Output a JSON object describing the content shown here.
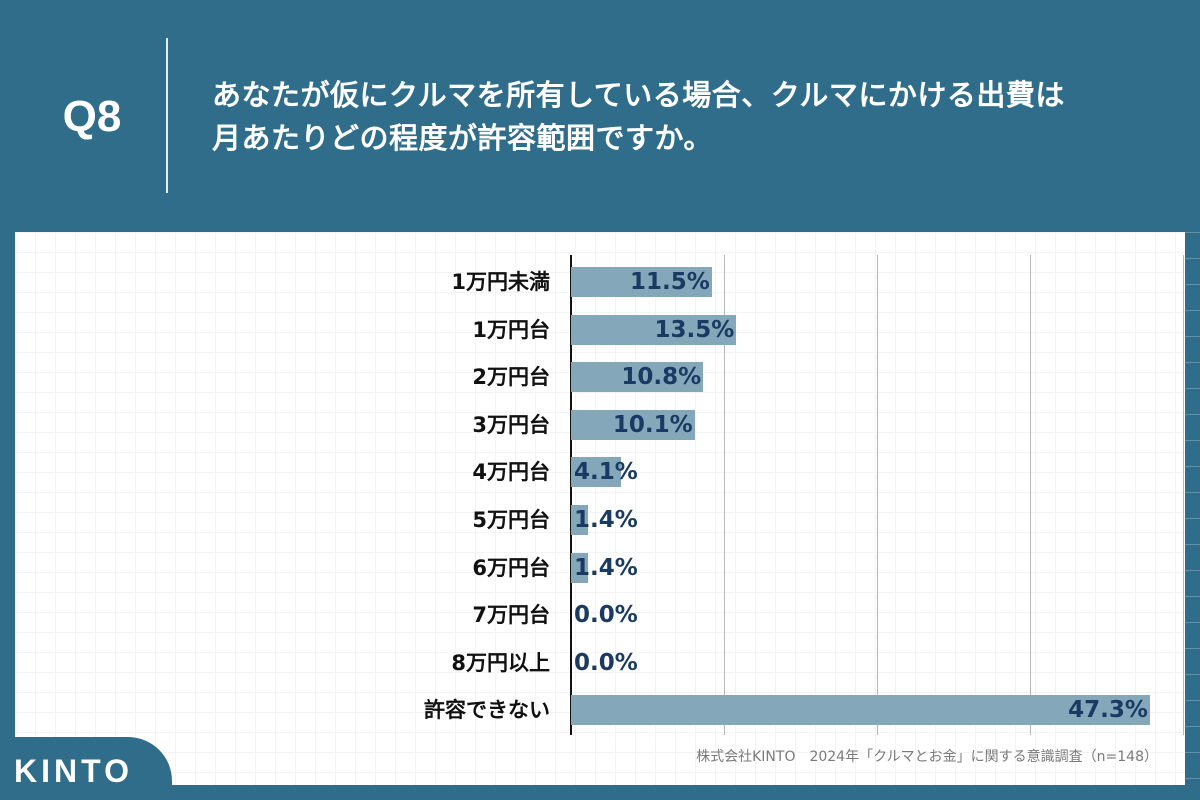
{
  "header": {
    "question_number": "Q8",
    "title_lines": [
      "あなたが仮にクルマを所有している場合、クルマにかける出費は",
      "月あたりどの程度が許容範囲ですか。"
    ]
  },
  "colors": {
    "background": "#2f6d8a",
    "bar": "#84a8ba",
    "value_text": "#1b3a63",
    "label_text": "#111111",
    "source_text": "#7a7a7a"
  },
  "chart_data": {
    "type": "bar",
    "orientation": "horizontal",
    "title": "あなたが仮にクルマを所有している場合、クルマにかける出費は月あたりどの程度が許容範囲ですか。",
    "categories": [
      "1万円未満",
      "1万円台",
      "2万円台",
      "3万円台",
      "4万円台",
      "5万円台",
      "6万円台",
      "7万円台",
      "8万円以上",
      "許容できない"
    ],
    "values": [
      11.5,
      13.5,
      10.8,
      10.1,
      4.1,
      1.4,
      1.4,
      0.0,
      0.0,
      47.3
    ],
    "value_labels": [
      "11.5%",
      "13.5%",
      "10.8%",
      "10.1%",
      "4.1%",
      "1.4%",
      "1.4%",
      "0.0%",
      "0.0%",
      "47.3%"
    ],
    "unit": "%",
    "xlabel": "",
    "ylabel": "",
    "xlim": [
      0,
      50
    ],
    "gridlines_at": [
      12.5,
      25,
      37.5,
      50
    ],
    "grid": true,
    "legend": null,
    "source": "株式会社KINTO　2024年「クルマとお金」に関する意識調査（n=148）"
  },
  "footer": {
    "source": "株式会社KINTO　2024年「クルマとお金」に関する意識調査（n=148）",
    "logo_text": "KINTO"
  }
}
